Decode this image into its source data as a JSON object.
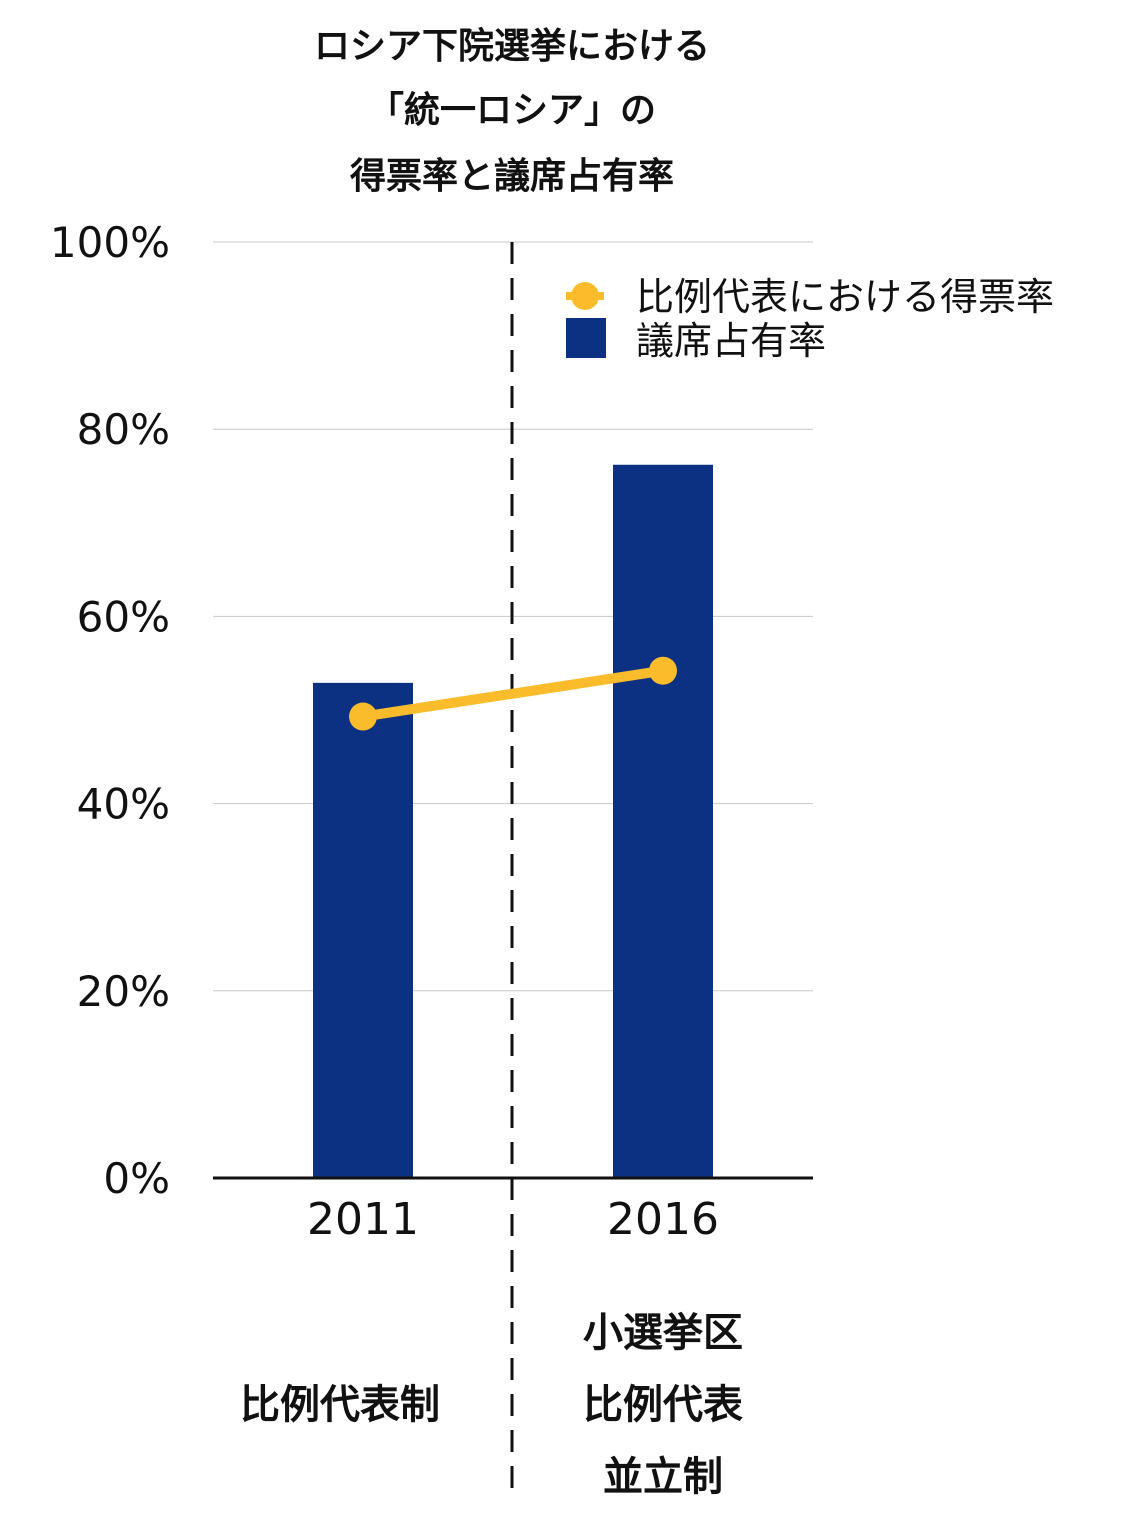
{
  "chart_data": {
    "type": "bar",
    "title_lines": [
      "ロシア下院選挙における",
      "「統一ロシア」の",
      "得票率と議席占有率"
    ],
    "categories": [
      "2011",
      "2016"
    ],
    "series": [
      {
        "name": "議席占有率",
        "type": "bar",
        "color": "#0d3182",
        "values": [
          52.9,
          76.2
        ]
      },
      {
        "name": "比例代表における得票率",
        "type": "line",
        "color": "#fbbc2c",
        "values": [
          49.3,
          54.2
        ]
      }
    ],
    "ylim": [
      0,
      100
    ],
    "yticks": [
      0,
      20,
      40,
      60,
      80,
      100
    ],
    "ytick_labels": [
      "0%",
      "20%",
      "40%",
      "60%",
      "80%",
      "100%"
    ],
    "grid": true,
    "legend_position": "top-right",
    "divider": "dashed vertical line between 2011 and 2016",
    "system_labels": [
      [
        "比例代表制"
      ],
      [
        "小選挙区",
        "比例代表",
        "並立制"
      ]
    ]
  }
}
